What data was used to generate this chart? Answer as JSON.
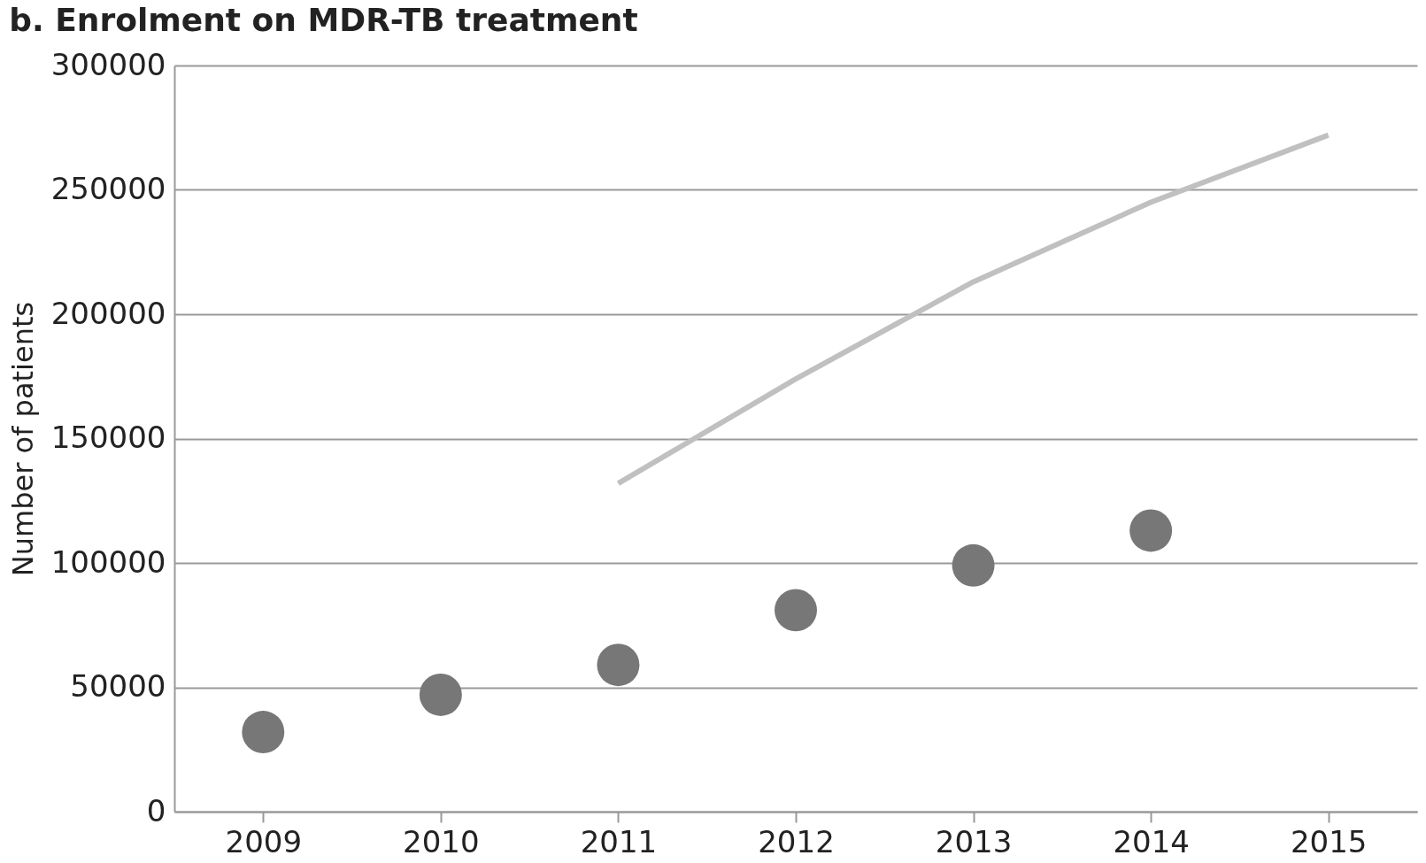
{
  "chart_data": {
    "type": "scatter",
    "title": "b.  Enrolment on MDR-TB treatment",
    "ylabel": "Number of patients",
    "categories": [
      "2009",
      "2010",
      "2011",
      "2012",
      "2013",
      "2014",
      "2015"
    ],
    "series": [
      {
        "type": "scatter",
        "color": "#777777",
        "marker": "circle",
        "values": [
          32000,
          47000,
          59000,
          81000,
          99000,
          113000,
          null
        ]
      },
      {
        "type": "line",
        "color": "#c0c0c0",
        "line_style": "solid",
        "values": [
          null,
          null,
          132000,
          174000,
          213000,
          245000,
          272000
        ]
      }
    ],
    "ylim": [
      0,
      300000
    ],
    "yticks": [
      0,
      50000,
      100000,
      150000,
      200000,
      250000,
      300000
    ],
    "grid": "y"
  }
}
